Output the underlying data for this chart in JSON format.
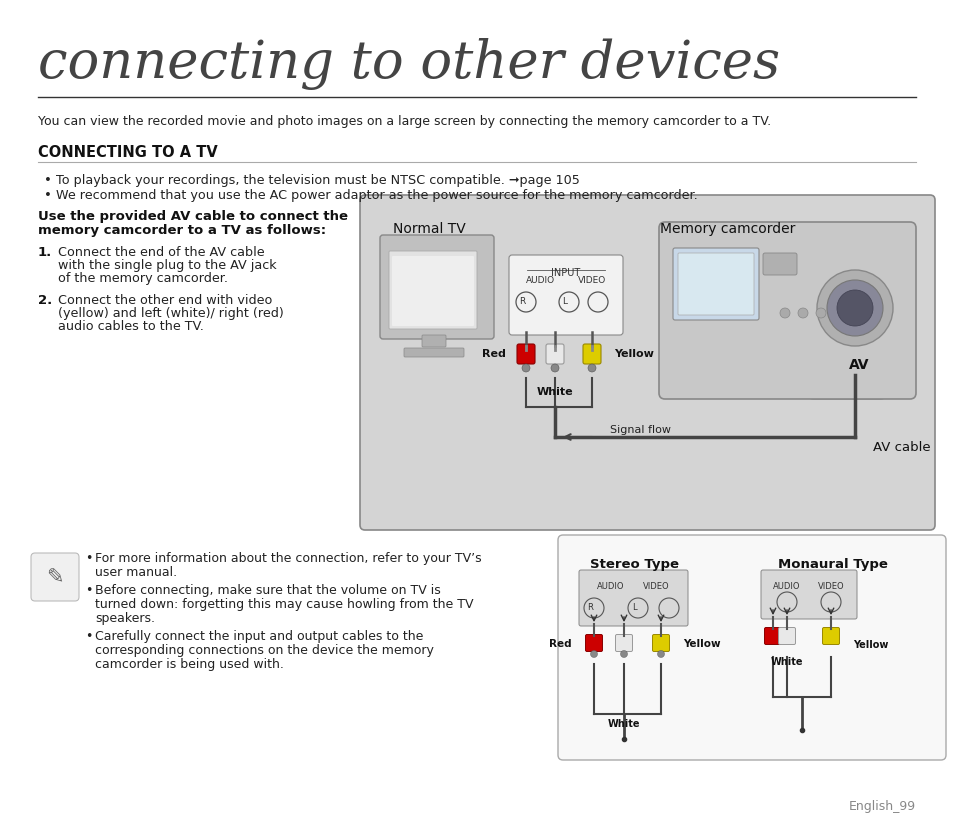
{
  "title": "connecting to other devices",
  "subtitle": "You can view the recorded movie and photo images on a large screen by connecting the memory camcorder to a TV.",
  "section_title": "CONNECTING TO A TV",
  "bullet1": "To playback your recordings, the television must be NTSC compatible. ➞page 105",
  "bullet2": "We recommend that you use the AC power adaptor as the power source for the memory camcorder.",
  "bold_intro_1": "Use the provided AV cable to connect the",
  "bold_intro_2": "memory camcorder to a TV as follows:",
  "step1_bold": "1.",
  "step1_line1": "Connect the end of the AV cable",
  "step1_line2": "with the single plug to the AV jack",
  "step1_line3": "of the memory camcorder.",
  "step2_bold": "2.",
  "step2_line1": "Connect the other end with video",
  "step2_line2": "(yellow) and left (white)/ right (red)",
  "step2_line3": "audio cables to the TV.",
  "note1_line1": "For more information about the connection, refer to your TV’s",
  "note1_line2": "user manual.",
  "note2_line1": "Before connecting, make sure that the volume on TV is",
  "note2_line2": "turned down: forgetting this may cause howling from the TV",
  "note2_line3": "speakers.",
  "note3_line1": "Carefully connect the input and output cables to the",
  "note3_line2": "corresponding connections on the device the memory",
  "note3_line3": "camcorder is being used with.",
  "diagram_label_tv": "Normal TV",
  "diagram_label_cam": "Memory camcorder",
  "diagram_label_input": "INPUT",
  "diagram_label_audio": "AUDIO",
  "diagram_label_video": "VIDEO",
  "diagram_label_r": "R",
  "diagram_label_l": "L",
  "diagram_label_red": "Red",
  "diagram_label_white": "White",
  "diagram_label_yellow": "Yellow",
  "diagram_label_signal": "Signal flow",
  "diagram_label_av": "AV",
  "diagram_label_avcable": "AV cable",
  "stereo_title": "Stereo Type",
  "mono_title": "Monaural Type",
  "page_label": "English_99",
  "bg_color": "#ffffff",
  "diagram_bg": "#d4d4d4",
  "red_color": "#cc0000",
  "yellow_color": "#ddcc00",
  "title_color": "#444444",
  "text_color": "#222222",
  "section_color": "#111111"
}
